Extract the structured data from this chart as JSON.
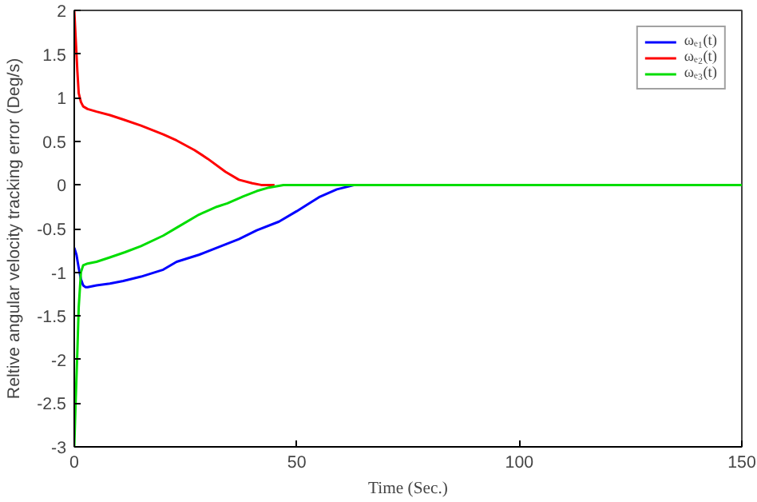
{
  "chart_data": {
    "type": "line",
    "xlabel": "Time (Sec.)",
    "ylabel": "Reltive angular velocity tracking error (Deg/s)",
    "xlim": [
      0,
      150
    ],
    "ylim": [
      -3,
      2
    ],
    "xticks": [
      0,
      50,
      100,
      150
    ],
    "yticks": [
      -3,
      -2.5,
      -2,
      -1.5,
      -1,
      -0.5,
      0,
      0.5,
      1,
      1.5,
      2
    ],
    "grid": false,
    "legend": "top right",
    "series": [
      {
        "name": "ωₑ₁(t)",
        "color": "#0000ff",
        "x": [
          0,
          0.5,
          1,
          1.5,
          2,
          2.5,
          3,
          5,
          8,
          11,
          15,
          20,
          23,
          28,
          33,
          37,
          41,
          46,
          50,
          55,
          59,
          63,
          67
        ],
        "values": [
          -0.72,
          -0.8,
          -0.95,
          -1.08,
          -1.15,
          -1.17,
          -1.17,
          -1.15,
          -1.13,
          -1.1,
          -1.05,
          -0.97,
          -0.88,
          -0.8,
          -0.7,
          -0.62,
          -0.52,
          -0.42,
          -0.3,
          -0.14,
          -0.05,
          0,
          0
        ]
      },
      {
        "name": "ωₑ₂(t)",
        "color": "#ff0000",
        "x": [
          0,
          0.3,
          0.7,
          1,
          1.5,
          2,
          3,
          5,
          8,
          11,
          15,
          20,
          23,
          27,
          30,
          34,
          37,
          40,
          42,
          45
        ],
        "values": [
          2,
          1.7,
          1.3,
          1.05,
          0.95,
          0.9,
          0.87,
          0.84,
          0.8,
          0.75,
          0.68,
          0.58,
          0.51,
          0.4,
          0.3,
          0.15,
          0.06,
          0.02,
          0,
          0
        ]
      },
      {
        "name": "ωₑ₃(t)",
        "color": "#00dd00",
        "x": [
          0,
          0.3,
          0.7,
          1,
          1.5,
          2,
          3,
          5,
          8,
          11.4,
          15,
          20,
          23,
          28,
          32,
          34.4,
          38,
          41,
          43.7,
          47,
          50,
          100,
          150
        ],
        "values": [
          -3,
          -2.5,
          -1.9,
          -1.4,
          -1.0,
          -0.92,
          -0.9,
          -0.88,
          -0.83,
          -0.77,
          -0.7,
          -0.58,
          -0.49,
          -0.34,
          -0.25,
          -0.21,
          -0.13,
          -0.07,
          -0.03,
          0,
          0,
          0,
          0
        ]
      }
    ]
  }
}
